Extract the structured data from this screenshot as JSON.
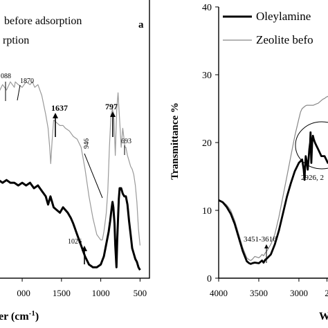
{
  "chart_data": [
    {
      "type": "line",
      "panel_label": "a",
      "xlabel": "er (cm",
      "xlabel_sup": "-1",
      "xlabel_close": ")",
      "ylabel": "",
      "xlim": [
        2300,
        380
      ],
      "ylim": [
        0,
        100
      ],
      "x_ticks": [
        "000",
        "1500",
        "1000",
        "500"
      ],
      "x_tick_values": [
        2000,
        1500,
        1000,
        500
      ],
      "legend": [
        "before adsorption",
        "rption"
      ],
      "annotations": [
        {
          "text": "088",
          "x": 2088,
          "y": 82
        },
        {
          "text": "1870",
          "x": 1870,
          "y": 80
        },
        {
          "text": "1637",
          "x": 1637,
          "y": 67
        },
        {
          "text": "797",
          "x": 797,
          "y": 66
        },
        {
          "text": "693",
          "x": 693,
          "y": 55
        },
        {
          "text": "946",
          "x": 946,
          "y": 50
        },
        {
          "text": "1026",
          "x": 1026,
          "y": 18
        }
      ],
      "series": [
        {
          "color": "#999999",
          "x": [
            2300,
            2250,
            2200,
            2150,
            2100,
            2088,
            2050,
            2000,
            1950,
            1900,
            1870,
            1840,
            1800,
            1750,
            1700,
            1670,
            1650,
            1637,
            1620,
            1600,
            1560,
            1520,
            1480,
            1450,
            1400,
            1350,
            1300,
            1250,
            1200,
            1150,
            1100,
            1050,
            1000,
            980,
            960,
            946,
            930,
            910,
            890,
            870,
            850,
            830,
            815,
            797,
            780,
            760,
            740,
            720,
            700,
            693,
            680,
            660,
            640,
            620,
            600,
            580,
            560,
            540,
            520,
            500
          ],
          "y": [
            68,
            71,
            69,
            72,
            70,
            72,
            71,
            70,
            72,
            71,
            72,
            70,
            71,
            67,
            60,
            55,
            48,
            42,
            50,
            58,
            57,
            56,
            56,
            55,
            54,
            52,
            51,
            48,
            40,
            30,
            22,
            16,
            14,
            14,
            17,
            20,
            24,
            32,
            48,
            60,
            62,
            58,
            45,
            62,
            68,
            58,
            48,
            55,
            50,
            48,
            48,
            45,
            43,
            41,
            40,
            38,
            34,
            28,
            18,
            12
          ]
        },
        {
          "color": "#000000",
          "x": [
            2300,
            2250,
            2200,
            2150,
            2100,
            2050,
            2000,
            1950,
            1900,
            1850,
            1800,
            1750,
            1700,
            1670,
            1640,
            1620,
            1600,
            1560,
            1520,
            1480,
            1450,
            1420,
            1380,
            1350,
            1300,
            1250,
            1200,
            1150,
            1100,
            1050,
            1000,
            960,
            940,
            920,
            900,
            880,
            860,
            850,
            840,
            825,
            815,
            800,
            790,
            780,
            770,
            760,
            740,
            720,
            700,
            680,
            660,
            640,
            620,
            600,
            580,
            560,
            540,
            520,
            500
          ],
          "y": [
            36,
            35,
            36,
            35,
            35,
            34,
            35,
            34,
            35,
            33,
            34,
            32,
            30,
            27,
            30,
            28,
            26,
            25,
            24,
            26,
            25,
            24,
            22,
            20,
            16,
            12,
            8,
            5,
            4,
            4,
            5,
            8,
            11,
            14,
            17,
            21,
            26,
            28,
            26,
            20,
            12,
            4,
            14,
            22,
            29,
            33,
            33,
            31,
            30,
            30,
            27,
            21,
            16,
            11,
            9,
            7,
            6,
            4,
            3
          ]
        }
      ]
    },
    {
      "type": "line",
      "xlabel": "W",
      "ylabel": "Transmittance %",
      "xlim": [
        4000,
        2620
      ],
      "ylim": [
        0,
        40
      ],
      "x_ticks": [
        "4000",
        "3500",
        "3000",
        "2"
      ],
      "x_tick_values": [
        4000,
        3500,
        3000,
        2650
      ],
      "y_ticks": [
        "0",
        "10",
        "20",
        "30",
        "40"
      ],
      "y_tick_values": [
        0,
        10,
        20,
        30,
        40
      ],
      "legend": [
        "Oleylamine",
        "Zeolite befo"
      ],
      "annotations": [
        {
          "text": "3451-3616",
          "x": 3540,
          "y": 8
        },
        {
          "text": "2926, 2",
          "x": 2750,
          "y": 10
        }
      ],
      "series": [
        {
          "name": "Oleylamine",
          "color": "#000000",
          "x": [
            4000,
            3950,
            3900,
            3850,
            3800,
            3750,
            3700,
            3650,
            3620,
            3600,
            3580,
            3550,
            3500,
            3480,
            3460,
            3440,
            3420,
            3400,
            3350,
            3300,
            3250,
            3200,
            3150,
            3100,
            3050,
            3000,
            2960,
            2940,
            2930,
            2926,
            2915,
            2900,
            2890,
            2880,
            2870,
            2860,
            2855,
            2850,
            2845,
            2835,
            2825,
            2815,
            2800,
            2780,
            2760,
            2740,
            2720,
            2700,
            2680,
            2660,
            2640,
            2620
          ],
          "y": [
            11.5,
            11.2,
            10.5,
            9.5,
            8,
            6,
            4,
            2.5,
            2.2,
            2.1,
            2.2,
            2.3,
            2.2,
            2.4,
            2.6,
            2.3,
            2.7,
            2.9,
            3.5,
            5,
            7,
            9.5,
            12,
            14,
            15.8,
            17,
            17.5,
            16,
            14.5,
            15.5,
            18,
            17,
            16,
            17.5,
            19,
            20,
            21.5,
            19,
            17,
            20,
            21,
            20.5,
            20,
            19.5,
            19,
            18.5,
            18,
            18,
            18,
            17.5,
            17,
            17
          ]
        },
        {
          "name": "Zeolite befo",
          "color": "#888888",
          "x": [
            4000,
            3950,
            3900,
            3850,
            3800,
            3750,
            3700,
            3650,
            3620,
            3600,
            3580,
            3550,
            3500,
            3480,
            3460,
            3440,
            3420,
            3400,
            3350,
            3300,
            3250,
            3200,
            3150,
            3100,
            3050,
            3000,
            2980,
            2960,
            2940,
            2920,
            2900,
            2880,
            2860,
            2840,
            2820,
            2800,
            2780,
            2760,
            2740,
            2720,
            2700,
            2680,
            2660,
            2640,
            2620
          ],
          "y": [
            11.5,
            11.3,
            10.8,
            10,
            8.5,
            6.5,
            4.5,
            3,
            2.7,
            2.6,
            2.8,
            3.2,
            3,
            3.2,
            3.5,
            3.3,
            3.7,
            4,
            5,
            6.5,
            9,
            12,
            15,
            18,
            21,
            23.5,
            24.5,
            25,
            25.2,
            25.4,
            25.5,
            25.5,
            25.5,
            25.5,
            25.5,
            25.6,
            25.7,
            25.8,
            26,
            26.2,
            26.4,
            26.5,
            26.7,
            26.8,
            27
          ]
        }
      ]
    }
  ]
}
